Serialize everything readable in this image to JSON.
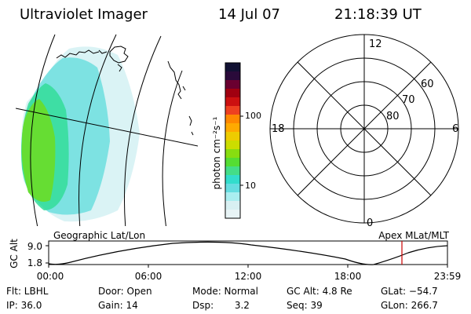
{
  "header": {
    "title": "Ultraviolet Imager",
    "date": "14 Jul 07",
    "time": "21:18:39 UT"
  },
  "colorbar": {
    "label": "photon cm⁻²s⁻¹",
    "ticks": [
      "100",
      "10"
    ],
    "colors": [
      "#111133",
      "#2a0a3a",
      "#6a0030",
      "#a00010",
      "#cc1010",
      "#ee4020",
      "#ff8800",
      "#ffaa00",
      "#eecc00",
      "#ccdd00",
      "#88dd10",
      "#55dd33",
      "#44dd88",
      "#33ddcc",
      "#66dde0",
      "#aaeef0",
      "#d8f0f2",
      "#e8f4f6"
    ]
  },
  "polar": {
    "mlt_labels": {
      "top": "12",
      "left": "18",
      "right": "6",
      "bottom": "0"
    },
    "lat_labels": [
      "60",
      "70",
      "80"
    ]
  },
  "timeline": {
    "left_title": "Geographic Lat/Lon",
    "right_title": "Apex  MLat/MLT",
    "y_axis_label": "GC Alt",
    "y_ticks": [
      "9.0",
      "1.8"
    ],
    "x_ticks": [
      "00:00",
      "06:00",
      "12:00",
      "18:00",
      "23:59"
    ],
    "current_marker_color": "#cc0000"
  },
  "info": {
    "flt": "Flt: LBHL",
    "ip": "IP: 36.0",
    "door": "Door: Open",
    "gain": "Gain: 14",
    "mode": "Mode: Normal",
    "dsp": "Dsp:       3.2",
    "gc_alt": "GC Alt: 4.8 Re",
    "seq": "Seq: 39",
    "glat": "GLat: −54.7",
    "glon": "GLon: 266.7"
  }
}
